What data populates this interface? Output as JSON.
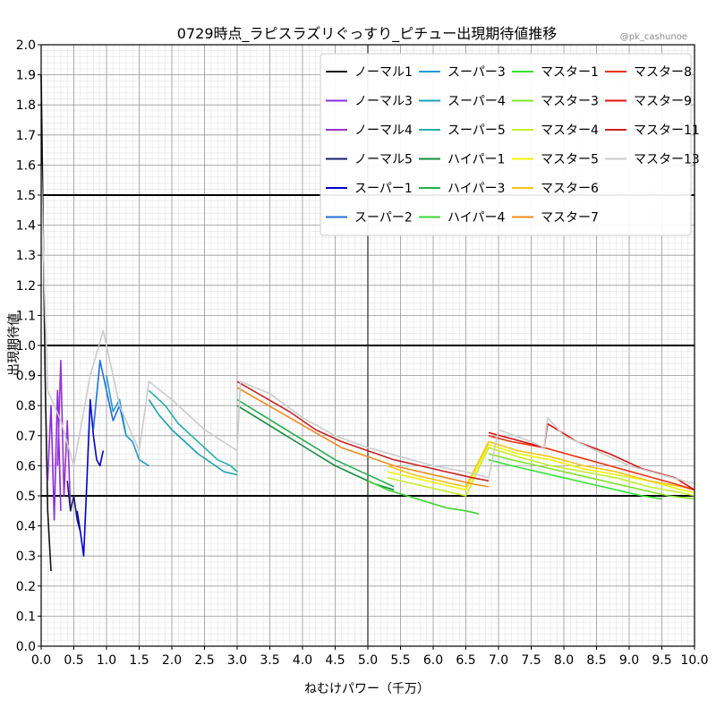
{
  "credit": "@pk_cashunoe",
  "chart_data": {
    "type": "line",
    "title": "0729時点_ラピスラズリぐっすり_ピチュー出現期待値推移",
    "xlabel": "ねむけパワー（千万）",
    "ylabel": "出現期待値",
    "xlim": [
      0.0,
      10.0
    ],
    "ylim": [
      0.0,
      2.0
    ],
    "x_ticks": [
      "0.0",
      "0.5",
      "1.0",
      "1.5",
      "2.0",
      "2.5",
      "3.0",
      "3.5",
      "4.0",
      "4.5",
      "5.0",
      "5.5",
      "6.0",
      "6.5",
      "7.0",
      "7.5",
      "8.0",
      "8.5",
      "9.0",
      "9.5",
      "10.0"
    ],
    "y_ticks": [
      "0.0",
      "0.1",
      "0.2",
      "0.3",
      "0.4",
      "0.5",
      "0.6",
      "0.7",
      "0.8",
      "0.9",
      "1.0",
      "1.1",
      "1.2",
      "1.3",
      "1.4",
      "1.5",
      "1.6",
      "1.7",
      "1.8",
      "1.9",
      "2.0"
    ],
    "reference_lines": [
      0.5,
      1.0,
      1.5
    ],
    "grid": true,
    "legend_position": "top-right",
    "series": [
      {
        "name": "ノーマル1",
        "color": "#111111",
        "x": [
          0.0,
          0.03,
          0.06,
          0.1,
          0.15
        ],
        "y": [
          1.9,
          1.4,
          0.9,
          0.45,
          0.25
        ]
      },
      {
        "name": "ノーマル3",
        "color": "#8a2be2",
        "x": [
          0.1,
          0.15,
          0.2,
          0.25,
          0.3
        ],
        "y": [
          0.55,
          0.8,
          0.42,
          0.85,
          0.45
        ]
      },
      {
        "name": "ノーマル4",
        "color": "#9932cc",
        "x": [
          0.25,
          0.3,
          0.35,
          0.4,
          0.45
        ],
        "y": [
          0.6,
          0.95,
          0.5,
          0.75,
          0.45
        ]
      },
      {
        "name": "ノーマル5",
        "color": "#191970",
        "x": [
          0.4,
          0.45,
          0.5,
          0.55,
          0.6
        ],
        "y": [
          0.55,
          0.45,
          0.5,
          0.42,
          0.38
        ]
      },
      {
        "name": "スーパー1",
        "color": "#0000cd",
        "x": [
          0.55,
          0.6,
          0.65,
          0.7,
          0.75,
          0.8,
          0.85,
          0.9,
          0.95
        ],
        "y": [
          0.45,
          0.38,
          0.3,
          0.55,
          0.82,
          0.7,
          0.62,
          0.6,
          0.65
        ]
      },
      {
        "name": "スーパー2",
        "color": "#1e6fd9",
        "x": [
          0.8,
          0.9,
          1.0,
          1.1,
          1.2,
          1.3
        ],
        "y": [
          0.72,
          0.95,
          0.85,
          0.75,
          0.8,
          0.7
        ]
      },
      {
        "name": "スーパー3",
        "color": "#1e9bd7",
        "x": [
          1.0,
          1.1,
          1.2,
          1.3,
          1.4,
          1.5,
          1.65
        ],
        "y": [
          0.9,
          0.78,
          0.82,
          0.7,
          0.68,
          0.62,
          0.6
        ]
      },
      {
        "name": "スーパー4",
        "color": "#17a2b8",
        "x": [
          1.65,
          1.8,
          2.0,
          2.2,
          2.4,
          2.6,
          2.8,
          3.0
        ],
        "y": [
          0.82,
          0.77,
          0.72,
          0.68,
          0.64,
          0.61,
          0.58,
          0.57
        ]
      },
      {
        "name": "スーパー5",
        "color": "#20b2aa",
        "x": [
          1.65,
          1.9,
          2.1,
          2.3,
          2.5,
          2.7,
          2.9,
          3.0
        ],
        "y": [
          0.85,
          0.8,
          0.74,
          0.7,
          0.66,
          0.62,
          0.6,
          0.58
        ]
      },
      {
        "name": "ハイパー1",
        "color": "#138d3e",
        "x": [
          3.0,
          3.3,
          3.6,
          3.9,
          4.2,
          4.5,
          4.8,
          5.1,
          5.4
        ],
        "y": [
          0.8,
          0.76,
          0.72,
          0.68,
          0.64,
          0.6,
          0.57,
          0.54,
          0.52
        ]
      },
      {
        "name": "ハイパー3",
        "color": "#22b14c",
        "x": [
          3.0,
          3.3,
          3.6,
          3.9,
          4.2,
          4.5,
          4.8,
          5.1,
          5.4
        ],
        "y": [
          0.82,
          0.78,
          0.74,
          0.7,
          0.66,
          0.62,
          0.59,
          0.56,
          0.53
        ]
      },
      {
        "name": "ハイパー4",
        "color": "#3cd631",
        "x": [
          5.0,
          5.3,
          5.6,
          5.9,
          6.2,
          6.5,
          6.7
        ],
        "y": [
          0.55,
          0.52,
          0.5,
          0.48,
          0.46,
          0.45,
          0.44
        ]
      },
      {
        "name": "マスター1",
        "color": "#33e633",
        "x": [
          6.85,
          7.2,
          7.6,
          8.0,
          8.4,
          8.8,
          9.2,
          9.5
        ],
        "y": [
          0.62,
          0.6,
          0.58,
          0.56,
          0.54,
          0.52,
          0.5,
          0.49
        ]
      },
      {
        "name": "マスター3",
        "color": "#7fe42a",
        "x": [
          6.85,
          7.2,
          7.6,
          8.0,
          8.4,
          8.8,
          9.2,
          9.6,
          10.0
        ],
        "y": [
          0.64,
          0.62,
          0.6,
          0.58,
          0.56,
          0.54,
          0.52,
          0.5,
          0.49
        ]
      },
      {
        "name": "マスター4",
        "color": "#c6ef2a",
        "x": [
          5.3,
          5.7,
          6.1,
          6.5,
          6.85,
          7.3,
          7.8,
          8.3,
          8.8,
          9.3,
          9.8,
          10.0
        ],
        "y": [
          0.56,
          0.54,
          0.52,
          0.5,
          0.66,
          0.63,
          0.6,
          0.58,
          0.56,
          0.53,
          0.51,
          0.5
        ]
      },
      {
        "name": "マスター5",
        "color": "#f2f20a",
        "x": [
          5.3,
          5.7,
          6.1,
          6.5,
          6.85,
          7.3,
          7.8,
          8.3,
          8.8,
          9.3,
          9.8,
          10.0
        ],
        "y": [
          0.58,
          0.56,
          0.54,
          0.52,
          0.67,
          0.64,
          0.62,
          0.59,
          0.57,
          0.55,
          0.52,
          0.51
        ]
      },
      {
        "name": "マスター6",
        "color": "#f5c518",
        "x": [
          5.3,
          5.7,
          6.1,
          6.5,
          6.85,
          7.3,
          7.8,
          8.3,
          8.8,
          9.3,
          9.8,
          10.0
        ],
        "y": [
          0.6,
          0.57,
          0.55,
          0.53,
          0.68,
          0.65,
          0.63,
          0.6,
          0.58,
          0.55,
          0.53,
          0.52
        ]
      },
      {
        "name": "マスター7",
        "color": "#f08a1c",
        "x": [
          3.0,
          3.4,
          3.8,
          4.2,
          4.6,
          5.0,
          5.4,
          5.8,
          6.2,
          6.6,
          6.85
        ],
        "y": [
          0.86,
          0.81,
          0.76,
          0.71,
          0.66,
          0.63,
          0.6,
          0.58,
          0.56,
          0.54,
          0.53
        ]
      },
      {
        "name": "マスター8",
        "color": "#ee3311",
        "x": [
          6.85,
          7.2,
          7.7,
          8.2,
          8.7,
          9.2,
          9.7,
          10.0
        ],
        "y": [
          0.7,
          0.68,
          0.66,
          0.63,
          0.6,
          0.57,
          0.54,
          0.52
        ]
      },
      {
        "name": "マスター9",
        "color": "#dd1111",
        "x": [
          6.85,
          7.2,
          7.7,
          7.75,
          8.2,
          8.7,
          9.2,
          9.7,
          10.0
        ],
        "y": [
          0.71,
          0.69,
          0.66,
          0.74,
          0.68,
          0.64,
          0.59,
          0.56,
          0.52
        ]
      },
      {
        "name": "マスター11",
        "color": "#cc2222",
        "x": [
          3.0,
          3.4,
          3.8,
          4.2,
          4.6,
          5.0,
          5.4,
          5.8,
          6.2,
          6.6,
          6.85
        ],
        "y": [
          0.88,
          0.83,
          0.78,
          0.72,
          0.68,
          0.65,
          0.62,
          0.6,
          0.58,
          0.56,
          0.55
        ]
      },
      {
        "name": "マスター13",
        "color": "#cccccc",
        "x": [
          0.0,
          0.05,
          0.1,
          0.3,
          0.5,
          0.75,
          0.95,
          1.2,
          1.5,
          1.65,
          2.0,
          2.5,
          3.0,
          3.05,
          3.5,
          4.0,
          4.5,
          5.0,
          5.5,
          6.0,
          6.5,
          6.85,
          7.0,
          7.5,
          7.7,
          7.75,
          8.0,
          8.5,
          9.0,
          9.5,
          10.0
        ],
        "y": [
          1.6,
          1.2,
          0.85,
          0.75,
          0.6,
          0.9,
          1.05,
          0.8,
          0.65,
          0.88,
          0.82,
          0.72,
          0.65,
          0.88,
          0.84,
          0.76,
          0.7,
          0.66,
          0.63,
          0.6,
          0.58,
          0.56,
          0.72,
          0.68,
          0.66,
          0.76,
          0.7,
          0.65,
          0.6,
          0.57,
          0.54
        ]
      }
    ]
  }
}
